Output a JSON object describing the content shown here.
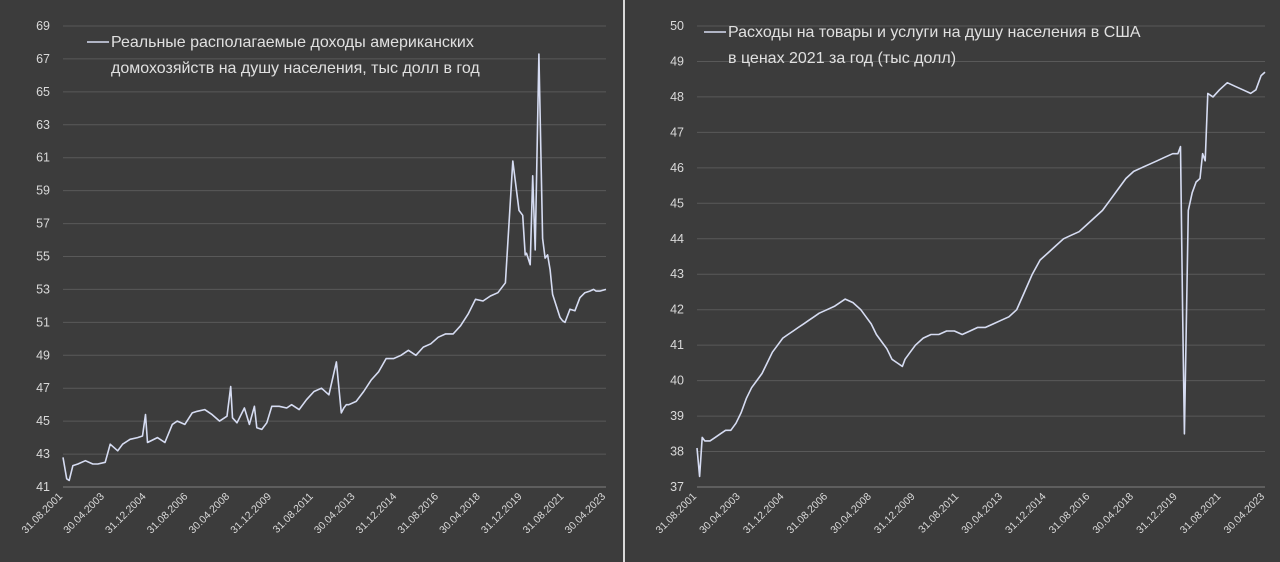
{
  "chart_data": [
    {
      "id": "left",
      "type": "line",
      "legend": [
        "Реальные располагаемые доходы американских",
        "домохозяйств на душу населения, тыс долл в год"
      ],
      "ylim": [
        41,
        69
      ],
      "yticks": [
        "41",
        "43",
        "45",
        "47",
        "49",
        "51",
        "53",
        "55",
        "57",
        "59",
        "61",
        "63",
        "65",
        "67",
        "69"
      ],
      "xticks": [
        "31.08.2001",
        "30.04.2003",
        "31.12.2004",
        "31.08.2006",
        "30.04.2008",
        "31.12.2009",
        "31.08.2011",
        "30.04.2013",
        "31.12.2014",
        "31.08.2016",
        "30.04.2018",
        "31.12.2019",
        "31.08.2021",
        "30.04.2023"
      ],
      "grid": true,
      "legend_position": "top-left",
      "series": [
        {
          "x": [
            2001.6,
            2001.75,
            2001.85,
            2002.0,
            2002.2,
            2002.5,
            2002.8,
            2003.0,
            2003.3,
            2003.5,
            2003.8,
            2004.0,
            2004.3,
            2004.6,
            2004.8,
            2004.92,
            2005.0,
            2005.4,
            2005.7,
            2006.0,
            2006.2,
            2006.5,
            2006.8,
            2007.0,
            2007.3,
            2007.6,
            2007.9,
            2008.2,
            2008.35,
            2008.42,
            2008.6,
            2008.9,
            2009.1,
            2009.3,
            2009.4,
            2009.6,
            2009.8,
            2010.0,
            2010.3,
            2010.6,
            2010.8,
            2011.1,
            2011.4,
            2011.7,
            2012.0,
            2012.3,
            2012.6,
            2012.8,
            2012.9,
            2013.0,
            2013.1,
            2013.4,
            2013.7,
            2014.0,
            2014.3,
            2014.6,
            2014.9,
            2015.2,
            2015.5,
            2015.8,
            2016.1,
            2016.4,
            2016.7,
            2017.0,
            2017.3,
            2017.6,
            2017.9,
            2018.2,
            2018.5,
            2018.8,
            2019.1,
            2019.4,
            2019.7,
            2019.95,
            2020.1,
            2020.2,
            2020.25,
            2020.4,
            2020.5,
            2020.6,
            2020.75,
            2020.9,
            2021.0,
            2021.1,
            2021.2,
            2021.3,
            2021.45,
            2021.6,
            2021.7,
            2021.8,
            2022.0,
            2022.2,
            2022.4,
            2022.6,
            2022.8,
            2022.95,
            2023.05,
            2023.2,
            2023.45
          ],
          "values": [
            42.8,
            41.5,
            41.4,
            42.3,
            42.4,
            42.6,
            42.4,
            42.4,
            42.5,
            43.6,
            43.2,
            43.6,
            43.9,
            44.0,
            44.1,
            45.4,
            43.7,
            44.0,
            43.7,
            44.8,
            45.0,
            44.8,
            45.5,
            45.6,
            45.7,
            45.4,
            45.0,
            45.3,
            47.1,
            45.2,
            44.9,
            45.8,
            44.8,
            45.9,
            44.6,
            44.5,
            44.9,
            45.9,
            45.9,
            45.8,
            46.0,
            45.7,
            46.3,
            46.8,
            47.0,
            46.6,
            48.6,
            45.5,
            45.8,
            46.0,
            46.0,
            46.2,
            46.8,
            47.5,
            48.0,
            48.8,
            48.8,
            49.0,
            49.3,
            49.0,
            49.5,
            49.7,
            50.1,
            50.3,
            50.3,
            50.8,
            51.5,
            52.4,
            52.3,
            52.6,
            52.8,
            53.4,
            60.8,
            57.8,
            57.5,
            55.1,
            55.2,
            54.5,
            59.9,
            55.4,
            67.3,
            56.1,
            54.9,
            55.1,
            54.2,
            52.7,
            52.0,
            51.3,
            51.1,
            51.0,
            51.8,
            51.7,
            52.5,
            52.8,
            52.9,
            53.0,
            52.9,
            52.9,
            53.0
          ]
        }
      ]
    },
    {
      "id": "right",
      "type": "line",
      "legend": [
        "Расходы на товары и услуги на душу населения в США",
        "в ценах 2021 за год (тыс долл)"
      ],
      "ylim": [
        37,
        50
      ],
      "yticks": [
        "37",
        "38",
        "39",
        "40",
        "41",
        "42",
        "43",
        "44",
        "45",
        "46",
        "47",
        "48",
        "49",
        "50"
      ],
      "xticks": [
        "31.08.2001",
        "30.04.2003",
        "31.12.2004",
        "31.08.2006",
        "30.04.2008",
        "31.12.2009",
        "31.08.2011",
        "30.04.2013",
        "31.12.2014",
        "31.08.2016",
        "30.04.2018",
        "31.12.2019",
        "31.08.2021",
        "30.04.2023"
      ],
      "grid": true,
      "legend_position": "top-left",
      "series": [
        {
          "x": [
            2001.6,
            2001.7,
            2001.8,
            2001.9,
            2002.1,
            2002.3,
            2002.5,
            2002.7,
            2002.9,
            2003.1,
            2003.3,
            2003.5,
            2003.7,
            2003.9,
            2004.1,
            2004.3,
            2004.5,
            2004.7,
            2004.9,
            2005.1,
            2005.3,
            2005.5,
            2005.7,
            2005.9,
            2006.1,
            2006.3,
            2006.6,
            2006.9,
            2007.1,
            2007.3,
            2007.6,
            2007.9,
            2008.1,
            2008.3,
            2008.5,
            2008.7,
            2008.9,
            2009.1,
            2009.3,
            2009.5,
            2009.6,
            2009.8,
            2010.0,
            2010.3,
            2010.6,
            2010.9,
            2011.2,
            2011.5,
            2011.8,
            2012.1,
            2012.4,
            2012.7,
            2013.0,
            2013.3,
            2013.6,
            2013.9,
            2014.2,
            2014.5,
            2014.8,
            2015.1,
            2015.4,
            2015.7,
            2016.0,
            2016.3,
            2016.6,
            2016.9,
            2017.2,
            2017.5,
            2017.8,
            2018.1,
            2018.4,
            2018.7,
            2019.0,
            2019.3,
            2019.6,
            2019.9,
            2020.1,
            2020.2,
            2020.28,
            2020.35,
            2020.5,
            2020.65,
            2020.8,
            2020.95,
            2021.05,
            2021.15,
            2021.25,
            2021.45,
            2021.7,
            2022.0,
            2022.3,
            2022.6,
            2022.9,
            2023.1,
            2023.3,
            2023.45
          ],
          "values": [
            38.1,
            37.3,
            38.4,
            38.3,
            38.3,
            38.4,
            38.5,
            38.6,
            38.6,
            38.8,
            39.1,
            39.5,
            39.8,
            40.0,
            40.2,
            40.5,
            40.8,
            41.0,
            41.2,
            41.3,
            41.4,
            41.5,
            41.6,
            41.7,
            41.8,
            41.9,
            42.0,
            42.1,
            42.2,
            42.3,
            42.2,
            42.0,
            41.8,
            41.6,
            41.3,
            41.1,
            40.9,
            40.6,
            40.5,
            40.4,
            40.6,
            40.8,
            41.0,
            41.2,
            41.3,
            41.3,
            41.4,
            41.4,
            41.3,
            41.4,
            41.5,
            41.5,
            41.6,
            41.7,
            41.8,
            42.0,
            42.5,
            43.0,
            43.4,
            43.6,
            43.8,
            44.0,
            44.1,
            44.2,
            44.4,
            44.6,
            44.8,
            45.1,
            45.4,
            45.7,
            45.9,
            46.0,
            46.1,
            46.2,
            46.3,
            46.4,
            46.4,
            46.6,
            42.0,
            38.5,
            44.8,
            45.3,
            45.6,
            45.7,
            46.4,
            46.2,
            48.1,
            48.0,
            48.2,
            48.4,
            48.3,
            48.2,
            48.1,
            48.2,
            48.6,
            48.7
          ]
        }
      ]
    }
  ]
}
